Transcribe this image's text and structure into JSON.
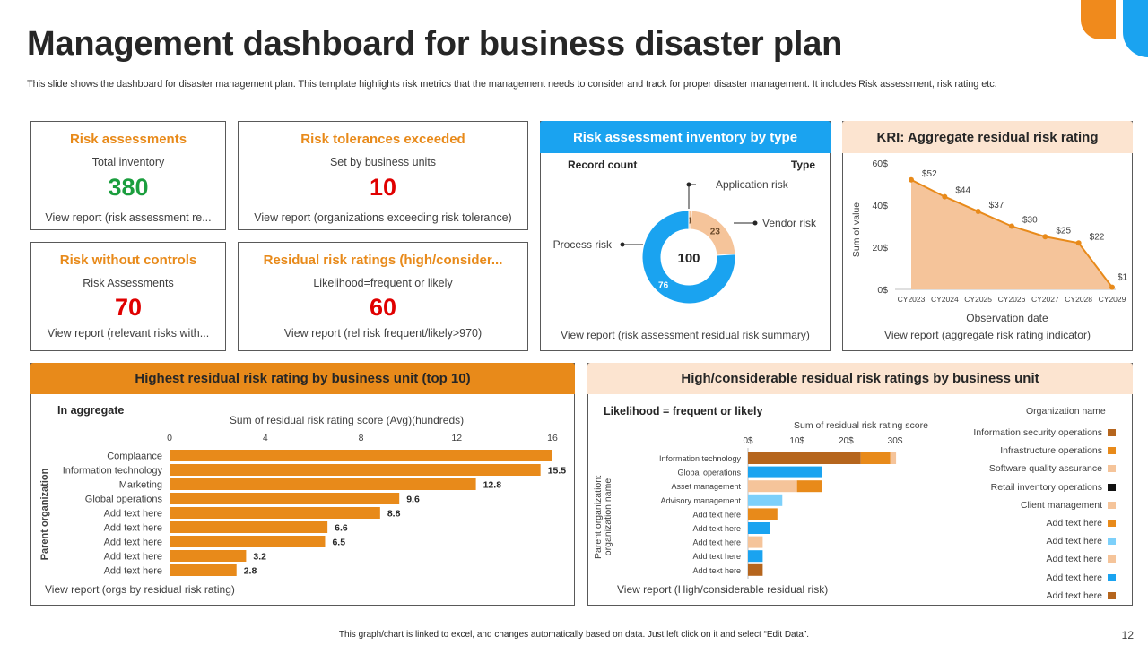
{
  "header": {
    "title": "Management dashboard for business disaster plan",
    "subtitle": "This slide shows the dashboard for disaster management plan. This template highlights risk metrics that the management needs to consider and track for proper disaster management. It includes Risk assessment, risk rating etc."
  },
  "kpis": [
    {
      "title": "Risk assessments",
      "sub": "Total inventory",
      "value": "380",
      "value_color": "#1B9E3E",
      "link": "View report (risk assessment re..."
    },
    {
      "title": "Risk tolerances exceeded",
      "sub": "Set by business units",
      "value": "10",
      "value_color": "#E00000",
      "link": "View report (organizations exceeding risk tolerance)"
    },
    {
      "title": "Risk without controls",
      "sub": "Risk Assessments",
      "value": "70",
      "value_color": "#E00000",
      "link": "View report (relevant risks with..."
    },
    {
      "title": "Residual risk ratings (high/consider...",
      "sub": "Likelihood=frequent or likely",
      "value": "60",
      "value_color": "#E00000",
      "link": "View report (rel risk frequent/likely>970)"
    }
  ],
  "inventory": {
    "title": "Risk assessment inventory by type",
    "col_left": "Record count",
    "col_right": "Type",
    "center": "100",
    "link": "View report (risk assessment residual risk summary)"
  },
  "kri": {
    "title": "KRI: Aggregate residual risk rating",
    "link": "View report (aggregate risk rating indicator)"
  },
  "highest": {
    "title": "Highest residual risk rating by business unit (top 10)",
    "in_aggregate": "In aggregate",
    "link": "View report (orgs by residual risk rating)"
  },
  "considerable": {
    "title": "High/considerable residual risk ratings by business unit",
    "likelihood": "Likelihood = frequent or likely",
    "link": "View report (High/considerable residual risk)",
    "legend_title": "Organization name"
  },
  "footer": {
    "note": "This graph/chart is linked to excel, and changes automatically based on data. Just left click on it and select “Edit Data”.",
    "page": "12"
  },
  "colors": {
    "orange": "#E88A1A",
    "peach": "#F5C49A",
    "light_peach": "#FCE4D0",
    "blue": "#1AA3F0",
    "brown": "#B5651D",
    "light_blue": "#7DD0FA"
  },
  "chart_data": [
    {
      "type": "pie",
      "title": "Risk assessment inventory by type",
      "center_label": "100",
      "slices": [
        {
          "name": "Application risk",
          "value": 1,
          "color": "#F5C49A"
        },
        {
          "name": "Vendor risk",
          "value": 23,
          "color": "#F5C49A"
        },
        {
          "name": "Process risk",
          "value": 76,
          "color": "#1AA3F0"
        }
      ]
    },
    {
      "type": "area",
      "title": "KRI: Aggregate residual risk rating",
      "xlabel": "Observation date",
      "ylabel": "Sum of value",
      "x": [
        "CY2023",
        "CY2024",
        "CY2025",
        "CY2026",
        "CY2027",
        "CY2028",
        "CY2029"
      ],
      "values": [
        52,
        44,
        37,
        30,
        25,
        22,
        1
      ],
      "value_labels": [
        "$52",
        "$44",
        "$37",
        "$30",
        "$25",
        "$22",
        "$1"
      ],
      "y_ticks": [
        "0$",
        "20$",
        "40$",
        "60$"
      ],
      "ylim": [
        0,
        60
      ]
    },
    {
      "type": "bar",
      "orientation": "horizontal",
      "title": "Sum of residual risk rating score (Avg)(hundreds)",
      "ylabel": "Parent organization",
      "categories": [
        "Complaance",
        "Information technology",
        "Marketing",
        "Global operations",
        "Add text here",
        "Add text here",
        "Add text here",
        "Add text here",
        "Add text here"
      ],
      "values": [
        16,
        15.5,
        12.8,
        9.6,
        8.8,
        6.6,
        6.5,
        3.2,
        2.8
      ],
      "value_labels": [
        "",
        "15.5",
        "12.8",
        "9.6",
        "8.8",
        "6.6",
        "6.5",
        "3.2",
        "2.8"
      ],
      "x_ticks": [
        "0",
        "4",
        "8",
        "12",
        "16"
      ],
      "xlim": [
        0,
        16
      ]
    },
    {
      "type": "bar",
      "orientation": "horizontal",
      "stacked": true,
      "title": "Sum of residual risk rating  score",
      "ylabel": "Parent organization: organization name",
      "x_ticks": [
        "0$",
        "10$",
        "20$",
        "30$"
      ],
      "xlim": [
        0,
        30
      ],
      "categories": [
        "Information technology",
        "Global operations",
        "Asset management",
        "Advisory management",
        "Add text here",
        "Add text here",
        "Add text here",
        "Add text here",
        "Add text here"
      ],
      "legend": [
        "Information security operations",
        "Infrastructure operations",
        "Software quality assurance",
        "Retail inventory operations",
        "Client management",
        "Add text here",
        "Add text here",
        "Add text here",
        "Add text here",
        "Add text here"
      ],
      "legend_colors": [
        "#B5651D",
        "#E88A1A",
        "#F5C49A",
        "#111111",
        "#F5C49A",
        "#E88A1A",
        "#7DD0FA",
        "#F5C49A",
        "#1AA3F0",
        "#B5651D"
      ],
      "stacks": [
        [
          {
            "value": 23,
            "color": "#B5651D"
          },
          {
            "value": 6,
            "color": "#E88A1A"
          },
          {
            "value": 1.2,
            "color": "#F5C49A"
          }
        ],
        [
          {
            "value": 15,
            "color": "#1AA3F0"
          }
        ],
        [
          {
            "value": 10,
            "color": "#F5C49A"
          },
          {
            "value": 5,
            "color": "#E88A1A"
          }
        ],
        [
          {
            "value": 7,
            "color": "#7DD0FA"
          }
        ],
        [
          {
            "value": 6,
            "color": "#E88A1A"
          }
        ],
        [
          {
            "value": 4.5,
            "color": "#1AA3F0"
          }
        ],
        [
          {
            "value": 3,
            "color": "#F5C49A"
          }
        ],
        [
          {
            "value": 3,
            "color": "#1AA3F0"
          }
        ],
        [
          {
            "value": 3,
            "color": "#B5651D"
          }
        ]
      ]
    }
  ]
}
